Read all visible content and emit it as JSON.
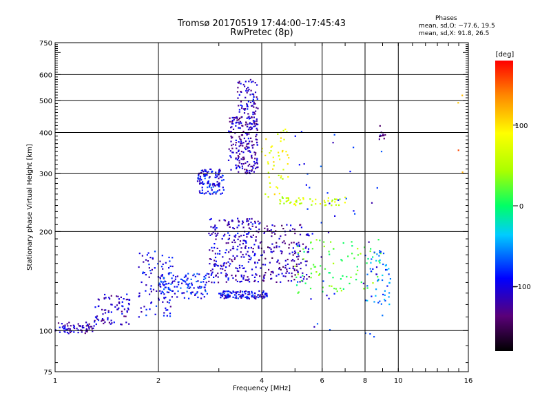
{
  "title_line1": "Tromsø 20170519 17:44:00–17:45:43",
  "title_line2": "RwPretec (8p)",
  "phase_panel": {
    "title": "Phases",
    "o_stats": "mean, sd,O: −77.6, 19.5",
    "x_stats": "mean, sd,X:  91.8, 26.5"
  },
  "colorbar": {
    "label": "[deg]",
    "range": [
      -180,
      180
    ],
    "ticks": [
      100,
      0,
      -100
    ],
    "tick_labels": [
      "100",
      "0",
      "−100"
    ]
  },
  "chart_data": {
    "type": "scatter",
    "xlabel": "Frequency [MHz]",
    "ylabel": "Stationary phase Virtual Height [km]",
    "x_scale": "log",
    "y_scale": "log",
    "xlim": [
      1,
      16
    ],
    "ylim": [
      75,
      750
    ],
    "x_ticks": [
      1,
      2,
      4,
      6,
      8,
      10,
      16
    ],
    "x_tick_labels": [
      "1",
      "2",
      "4",
      "6",
      "8",
      "10",
      "16"
    ],
    "y_ticks": [
      75,
      100,
      200,
      300,
      400,
      500,
      600,
      750
    ],
    "y_tick_labels": [
      "75",
      "100",
      "200",
      "300",
      "400",
      "500",
      "600",
      "750"
    ],
    "grid": true,
    "color_variable": "phase [deg]",
    "clusters": [
      {
        "x_range": [
          1.0,
          1.3
        ],
        "y_range": [
          98,
          106
        ],
        "phase": -115,
        "count": 70
      },
      {
        "x_range": [
          1.3,
          1.65
        ],
        "y_range": [
          104,
          130
        ],
        "phase": -110,
        "count": 80
      },
      {
        "x_range": [
          1.75,
          2.2
        ],
        "y_range": [
          110,
          175
        ],
        "phase": -100,
        "count": 90
      },
      {
        "x_range": [
          2.0,
          2.8
        ],
        "y_range": [
          125,
          150
        ],
        "phase": -85,
        "count": 120
      },
      {
        "x_range": [
          2.6,
          3.1
        ],
        "y_range": [
          260,
          310
        ],
        "phase": -95,
        "count": 120
      },
      {
        "x_range": [
          2.8,
          4.0
        ],
        "y_range": [
          140,
          220
        ],
        "phase": -110,
        "count": 260
      },
      {
        "x_range": [
          3.2,
          3.9
        ],
        "y_range": [
          300,
          450
        ],
        "phase": -115,
        "count": 220
      },
      {
        "x_range": [
          3.4,
          3.9
        ],
        "y_range": [
          450,
          580
        ],
        "phase": -110,
        "count": 70
      },
      {
        "x_range": [
          3.0,
          4.2
        ],
        "y_range": [
          125,
          132
        ],
        "phase": -100,
        "count": 120
      },
      {
        "x_range": [
          4.0,
          5.5
        ],
        "y_range": [
          140,
          210
        ],
        "phase": -120,
        "count": 160
      },
      {
        "x_range": [
          4.0,
          4.8
        ],
        "y_range": [
          250,
          420
        ],
        "phase": 80,
        "count": 50
      },
      {
        "x_range": [
          4.5,
          7.0
        ],
        "y_range": [
          240,
          255
        ],
        "phase": 60,
        "count": 50
      },
      {
        "x_range": [
          5.0,
          9.0
        ],
        "y_range": [
          130,
          190
        ],
        "phase": 20,
        "count": 90
      },
      {
        "x_range": [
          8.0,
          9.5
        ],
        "y_range": [
          120,
          180
        ],
        "phase": -60,
        "count": 50
      },
      {
        "x_range": [
          5.0,
          9.0
        ],
        "y_range": [
          90,
          420
        ],
        "phase": -90,
        "count": 50
      },
      {
        "x_range": [
          8.8,
          9.2
        ],
        "y_range": [
          380,
          420
        ],
        "phase": -140,
        "count": 10
      },
      {
        "x_range": [
          14.8,
          15.5
        ],
        "y_range": [
          280,
          540
        ],
        "phase": 130,
        "count": 4
      }
    ]
  }
}
